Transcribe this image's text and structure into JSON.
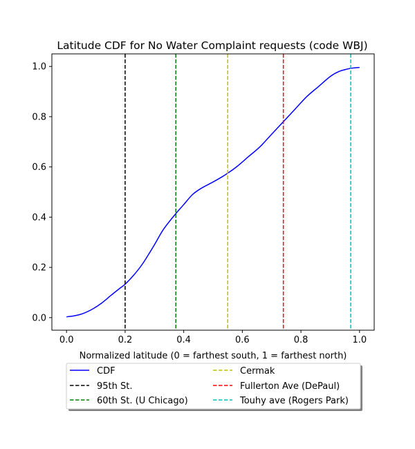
{
  "chart_data": {
    "type": "line",
    "title": "Latitude CDF for No Water Complaint  requests (code WBJ)",
    "xlabel": "Normalized latitude (0 = farthest south, 1 = farthest north)",
    "ylabel": "",
    "xlim": [
      -0.05,
      1.05
    ],
    "ylim": [
      -0.05,
      1.05
    ],
    "xticks": [
      0.0,
      0.2,
      0.4,
      0.6,
      0.8,
      1.0
    ],
    "xtick_labels": [
      "0.0",
      "0.2",
      "0.4",
      "0.6",
      "0.8",
      "1.0"
    ],
    "yticks": [
      0.0,
      0.2,
      0.4,
      0.6,
      0.8,
      1.0
    ],
    "ytick_labels": [
      "0.0",
      "0.2",
      "0.4",
      "0.6",
      "0.8",
      "1.0"
    ],
    "grid": false,
    "legend_position": "below plot, two columns, shadowed box",
    "series": [
      {
        "name": "CDF",
        "color": "#0000ff",
        "style": "solid",
        "x": [
          0.0,
          0.03,
          0.06,
          0.09,
          0.12,
          0.15,
          0.18,
          0.2,
          0.23,
          0.26,
          0.3,
          0.33,
          0.37,
          0.4,
          0.43,
          0.46,
          0.5,
          0.53,
          0.55,
          0.58,
          0.62,
          0.66,
          0.7,
          0.74,
          0.78,
          0.82,
          0.86,
          0.9,
          0.93,
          0.96,
          0.98,
          1.0
        ],
        "y": [
          0.003,
          0.008,
          0.018,
          0.035,
          0.058,
          0.087,
          0.115,
          0.133,
          0.17,
          0.215,
          0.29,
          0.35,
          0.41,
          0.45,
          0.49,
          0.515,
          0.54,
          0.56,
          0.575,
          0.6,
          0.64,
          0.68,
          0.73,
          0.78,
          0.83,
          0.88,
          0.92,
          0.96,
          0.98,
          0.99,
          0.994,
          0.996
        ]
      }
    ],
    "reference_lines": [
      {
        "name": "95th St.",
        "x": 0.2,
        "color": "#000000"
      },
      {
        "name": "60th St. (U Chicago)",
        "x": 0.373,
        "color": "#008000"
      },
      {
        "name": "Cermak",
        "x": 0.55,
        "color": "#bfbf00"
      },
      {
        "name": "Fullerton Ave (DePaul)",
        "x": 0.74,
        "color": "#ff0000"
      },
      {
        "name": "Touhy ave (Rogers Park)",
        "x": 0.97,
        "color": "#00bfbf"
      }
    ]
  }
}
